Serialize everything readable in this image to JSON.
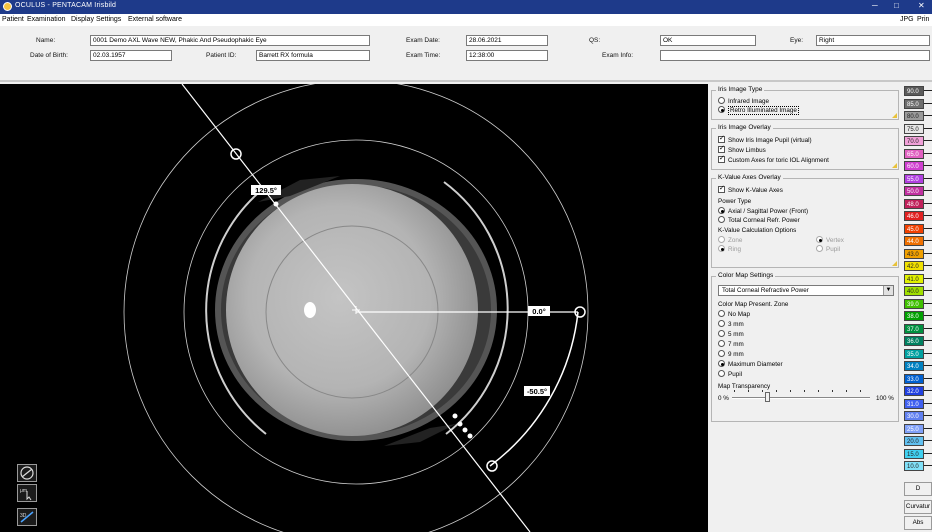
{
  "window": {
    "title": "OCULUS - PENTACAM  Irisbild",
    "minimize": "─",
    "maximize": "□",
    "close": "✕"
  },
  "menu": {
    "items": [
      "Patient",
      "Examination",
      "Display",
      "Settings",
      "External software"
    ],
    "right": [
      "JPG",
      "Prin"
    ]
  },
  "patient": {
    "name_label": "Name:",
    "name": "0001 Demo AXL Wave NEW, Phakic And Pseudophakic Eye",
    "dob_label": "Date of Birth:",
    "dob": "02.03.1957",
    "patient_id_label": "Patient ID:",
    "patient_id": "Barrett RX formula",
    "exam_date_label": "Exam Date:",
    "exam_date": "28.06.2021",
    "exam_time_label": "Exam Time:",
    "exam_time": "12:38:00",
    "qs_label": "QS:",
    "qs": "OK",
    "eye_label": "Eye:",
    "eye": "Right",
    "exam_info_label": "Exam Info:",
    "exam_info": ""
  },
  "viewer": {
    "axis_labels": [
      "129.5°",
      "0.0°",
      "-50.5°"
    ],
    "center_marker": "+"
  },
  "panel": {
    "iris_type": {
      "title": "Iris Image Type",
      "options": [
        {
          "label": "Infrared Image",
          "selected": false
        },
        {
          "label": "Retro Illuminated Image",
          "selected": true
        }
      ]
    },
    "iris_overlay": {
      "title": "Iris Image Overlay",
      "checks": [
        {
          "label": "Show Iris Image Pupil (virtual)",
          "checked": true
        },
        {
          "label": "Show Limbus",
          "checked": true
        },
        {
          "label": "Custom Axes for toric IOL Alignment",
          "checked": true
        }
      ]
    },
    "kvalue": {
      "title": "K-Value Axes Overlay",
      "show_label": "Show K-Value Axes",
      "show_checked": true,
      "power_type_label": "Power Type",
      "power_options": [
        {
          "label": "Axial / Sagittal Power (Front)",
          "selected": true
        },
        {
          "label": "Total Corneal Refr. Power",
          "selected": false
        }
      ],
      "calc_label": "K-Value Calculation Options",
      "calc_options": [
        {
          "label": "Zone",
          "selected": false
        },
        {
          "label": "Vertex",
          "selected": true
        },
        {
          "label": "Ring",
          "selected": true
        },
        {
          "label": "Pupil",
          "selected": false
        }
      ]
    },
    "colormap": {
      "title": "Color Map Settings",
      "selected": "Total Corneal Refractive Power",
      "zone_label": "Color Map Present. Zone",
      "zone_options": [
        {
          "label": "No Map",
          "selected": false
        },
        {
          "label": "3 mm",
          "selected": false
        },
        {
          "label": "5 mm",
          "selected": false
        },
        {
          "label": "7 mm",
          "selected": false
        },
        {
          "label": "9 mm",
          "selected": false
        },
        {
          "label": "Maximum Diameter",
          "selected": true
        },
        {
          "label": "Pupil",
          "selected": false
        }
      ],
      "transparency_label": "Map Transparency",
      "transparency_min": "0 %",
      "transparency_max": "100 %",
      "transparency_value": 0.25
    }
  },
  "color_scale": {
    "values": [
      "90.0",
      "85.0",
      "80.0",
      "75.0",
      "70.0",
      "65.0",
      "60.0",
      "55.0",
      "50.0",
      "48.0",
      "46.0",
      "45.0",
      "44.0",
      "43.0",
      "42.0",
      "41.0",
      "40.0",
      "39.0",
      "38.0",
      "37.0",
      "36.0",
      "35.0",
      "34.0",
      "33.0",
      "32.0",
      "31.0",
      "30.0",
      "25.0",
      "20.0",
      "15.0",
      "10.0"
    ],
    "colors": [
      "#5a5a5a",
      "#6e6e6e",
      "#9a9a9a",
      "#e6e6e6",
      "#f0a0d8",
      "#e060c0",
      "#d040d0",
      "#b040e0",
      "#c030a0",
      "#c0205a",
      "#e02020",
      "#f04000",
      "#f07000",
      "#f0a000",
      "#f0e000",
      "#e0f000",
      "#a0e000",
      "#40c000",
      "#00a000",
      "#009040",
      "#008060",
      "#00a0a0",
      "#0080c0",
      "#0060d0",
      "#2040e0",
      "#4060f0",
      "#6080f0",
      "#80a0f8",
      "#60c0f0",
      "#40d0f0",
      "#80e0f8"
    ],
    "buttons": [
      "D",
      "Curvatur",
      "Abs"
    ]
  }
}
